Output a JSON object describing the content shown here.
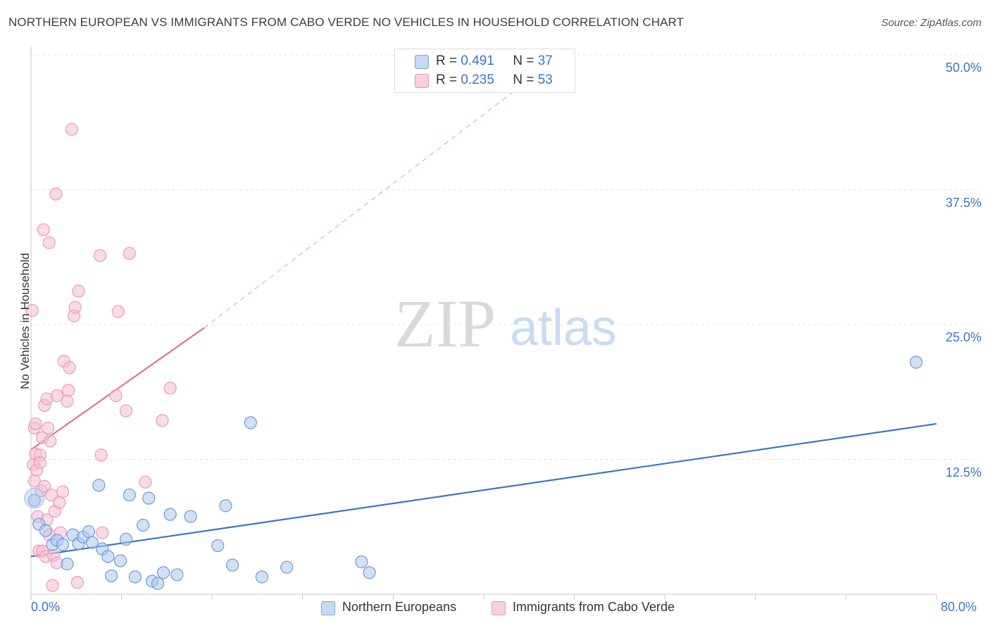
{
  "header": {
    "title": "NORTHERN EUROPEAN VS IMMIGRANTS FROM CABO VERDE NO VEHICLES IN HOUSEHOLD CORRELATION CHART",
    "source": "Source: ZipAtlas.com"
  },
  "colors": {
    "blue": "#3a76c4",
    "blue_fill": "#aac8ee",
    "pink": "#e0709a",
    "pink_fill": "#f6bdd0"
  },
  "legend_top": {
    "r_label": "R =",
    "n_label": "N =",
    "blue_r": "0.491",
    "blue_n": "37",
    "pink_r": "0.235",
    "pink_n": "53"
  },
  "watermark": {
    "zip": "ZIP",
    "atlas": "atlas"
  },
  "chart_data": {
    "type": "scatter",
    "title": "NORTHERN EUROPEAN VS IMMIGRANTS FROM CABO VERDE NO VEHICLES IN HOUSEHOLD CORRELATION CHART",
    "xlabel": "",
    "ylabel": "No Vehicles in Household",
    "xlim": [
      0,
      80
    ],
    "ylim": [
      0,
      50
    ],
    "x_tick_labels": [
      "0.0%",
      "80.0%"
    ],
    "y_tick_labels": [
      "12.5%",
      "25.0%",
      "37.5%",
      "50.0%"
    ],
    "y_ticks": [
      12.5,
      25,
      37.5,
      50
    ],
    "legend_position": "bottom",
    "series": [
      {
        "name": "Northern Europeans",
        "color": "#3a76c4",
        "r": 0.491,
        "n": 37,
        "trend": {
          "x": [
            0,
            80
          ],
          "y": [
            3.5,
            15.8
          ]
        },
        "points": [
          [
            0.3,
            8.7
          ],
          [
            0.7,
            6.5
          ],
          [
            1.3,
            5.9
          ],
          [
            1.9,
            4.6
          ],
          [
            2.3,
            5.0
          ],
          [
            2.8,
            4.6
          ],
          [
            3.2,
            2.8
          ],
          [
            3.7,
            5.5
          ],
          [
            4.2,
            4.7
          ],
          [
            4.6,
            5.3
          ],
          [
            5.1,
            5.8
          ],
          [
            5.4,
            4.8
          ],
          [
            6.0,
            10.1
          ],
          [
            6.3,
            4.2
          ],
          [
            6.8,
            3.5
          ],
          [
            7.1,
            1.7
          ],
          [
            7.9,
            3.1
          ],
          [
            8.4,
            5.1
          ],
          [
            8.7,
            9.2
          ],
          [
            9.2,
            1.6
          ],
          [
            9.9,
            6.4
          ],
          [
            10.4,
            8.9
          ],
          [
            10.7,
            1.2
          ],
          [
            11.2,
            1.0
          ],
          [
            11.7,
            2.0
          ],
          [
            12.3,
            7.4
          ],
          [
            12.9,
            1.8
          ],
          [
            14.1,
            7.2
          ],
          [
            16.5,
            4.5
          ],
          [
            17.2,
            8.2
          ],
          [
            17.8,
            2.7
          ],
          [
            19.4,
            15.9
          ],
          [
            20.4,
            1.6
          ],
          [
            22.6,
            2.5
          ],
          [
            29.2,
            3.0
          ],
          [
            29.9,
            2.0
          ],
          [
            78.2,
            21.5
          ]
        ]
      },
      {
        "name": "Immigrants from Cabo Verde",
        "color": "#e0709a",
        "r": 0.235,
        "n": 53,
        "trend": {
          "x": [
            0,
            15.3
          ],
          "y": [
            13.4,
            24.7
          ]
        },
        "trend_extended": {
          "x": [
            15.3,
            45
          ],
          "y": [
            24.7,
            48.5
          ]
        },
        "points": [
          [
            0.1,
            26.3
          ],
          [
            0.2,
            12.0
          ],
          [
            0.3,
            15.4
          ],
          [
            0.3,
            10.5
          ],
          [
            0.4,
            15.8
          ],
          [
            0.4,
            13.0
          ],
          [
            0.5,
            11.5
          ],
          [
            0.6,
            7.2
          ],
          [
            0.7,
            4.0
          ],
          [
            0.8,
            12.9
          ],
          [
            0.8,
            12.2
          ],
          [
            0.9,
            9.6
          ],
          [
            1.0,
            14.5
          ],
          [
            1.0,
            4.0
          ],
          [
            1.1,
            33.8
          ],
          [
            1.2,
            17.5
          ],
          [
            1.2,
            10.0
          ],
          [
            1.3,
            3.5
          ],
          [
            1.4,
            6.9
          ],
          [
            1.4,
            18.1
          ],
          [
            1.5,
            15.4
          ],
          [
            1.6,
            5.5
          ],
          [
            1.6,
            32.6
          ],
          [
            1.7,
            14.2
          ],
          [
            1.8,
            9.2
          ],
          [
            1.9,
            0.8
          ],
          [
            2.0,
            3.6
          ],
          [
            2.1,
            7.7
          ],
          [
            2.2,
            37.1
          ],
          [
            2.3,
            18.4
          ],
          [
            2.3,
            2.9
          ],
          [
            2.5,
            8.5
          ],
          [
            2.6,
            5.7
          ],
          [
            2.8,
            9.5
          ],
          [
            2.9,
            21.6
          ],
          [
            3.2,
            17.9
          ],
          [
            3.3,
            18.9
          ],
          [
            3.4,
            21.0
          ],
          [
            3.6,
            43.1
          ],
          [
            3.8,
            25.8
          ],
          [
            3.9,
            26.6
          ],
          [
            4.1,
            1.1
          ],
          [
            4.2,
            28.1
          ],
          [
            6.1,
            31.4
          ],
          [
            6.2,
            12.9
          ],
          [
            6.3,
            5.7
          ],
          [
            7.5,
            18.4
          ],
          [
            7.7,
            26.2
          ],
          [
            8.4,
            17.0
          ],
          [
            8.7,
            31.6
          ],
          [
            10.1,
            10.4
          ],
          [
            11.6,
            16.1
          ],
          [
            12.3,
            19.1
          ]
        ]
      }
    ]
  }
}
